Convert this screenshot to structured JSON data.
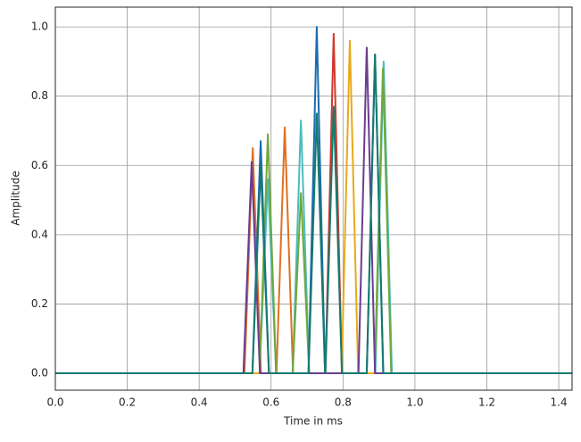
{
  "chart_data": {
    "type": "line",
    "xlabel": "Time in ms",
    "ylabel": "Amplitude",
    "xlim": [
      0,
      1.437
    ],
    "ylim": [
      -0.049,
      1.057
    ],
    "grid": true,
    "xticks": [
      {
        "value": 0,
        "label": "0.0"
      },
      {
        "value": 0.2,
        "label": "0.2"
      },
      {
        "value": 0.4,
        "label": "0.4"
      },
      {
        "value": 0.6,
        "label": "0.6"
      },
      {
        "value": 0.8,
        "label": "0.8"
      },
      {
        "value": 1,
        "label": "1.0"
      },
      {
        "value": 1.2,
        "label": "1.2"
      },
      {
        "value": 1.4,
        "label": "1.4"
      }
    ],
    "yticks": [
      {
        "value": 0,
        "label": "0.0"
      },
      {
        "value": 0.2,
        "label": "0.2"
      },
      {
        "value": 0.4,
        "label": "0.4"
      },
      {
        "value": 0.6,
        "label": "0.6"
      },
      {
        "value": 0.8,
        "label": "0.8"
      },
      {
        "value": 1,
        "label": "1.0"
      }
    ],
    "series": [
      {
        "color": "#e07020",
        "x": [
          0,
          0.526,
          0.549,
          0.572,
          0.615,
          0.638,
          0.661,
          1.437
        ],
        "values": [
          0,
          0,
          0.65,
          0,
          0,
          0.71,
          0,
          0
        ]
      },
      {
        "color": "#4bbcc0",
        "x": [
          0,
          0.568,
          0.591,
          0.614,
          0.66,
          0.683,
          0.706,
          0.89,
          0.913,
          0.936,
          1.437
        ],
        "values": [
          0,
          0,
          0.56,
          0,
          0,
          0.73,
          0,
          0,
          0.9,
          0,
          0
        ]
      },
      {
        "color": "#6fa83a",
        "x": [
          0,
          0.568,
          0.591,
          0.614,
          0.66,
          0.683,
          0.706,
          0.888,
          0.911,
          0.934,
          1.437
        ],
        "values": [
          0,
          0,
          0.69,
          0,
          0,
          0.52,
          0,
          0,
          0.88,
          0,
          0
        ]
      },
      {
        "color": "#d0392b",
        "x": [
          0,
          0.751,
          0.774,
          0.797,
          1.437
        ],
        "values": [
          0,
          0,
          0.98,
          0,
          0
        ]
      },
      {
        "color": "#e8a91a",
        "x": [
          0,
          0.796,
          0.819,
          0.842,
          1.437
        ],
        "values": [
          0,
          0,
          0.96,
          0,
          0
        ]
      },
      {
        "color": "#1a6cb0",
        "x": [
          0,
          0.548,
          0.571,
          0.594,
          0.704,
          0.727,
          0.75,
          0.866,
          0.889,
          0.912,
          1.437
        ],
        "values": [
          0,
          0,
          0.67,
          0,
          0,
          1.0,
          0,
          0,
          0.92,
          0,
          0
        ]
      },
      {
        "color": "#6a3d8f",
        "x": [
          0,
          0.523,
          0.546,
          0.569,
          0.843,
          0.866,
          0.889,
          1.437
        ],
        "values": [
          0,
          0,
          0.61,
          0,
          0,
          0.94,
          0,
          0
        ]
      },
      {
        "color": "#157a6e",
        "x": [
          0,
          0.548,
          0.571,
          0.594,
          0.704,
          0.727,
          0.75,
          0.751,
          0.774,
          0.797,
          0.866,
          0.889,
          0.912,
          1.437
        ],
        "values": [
          0,
          0,
          0.6,
          0,
          0,
          0.75,
          0,
          0,
          0.77,
          0,
          0,
          0.92,
          0,
          0
        ]
      }
    ]
  }
}
